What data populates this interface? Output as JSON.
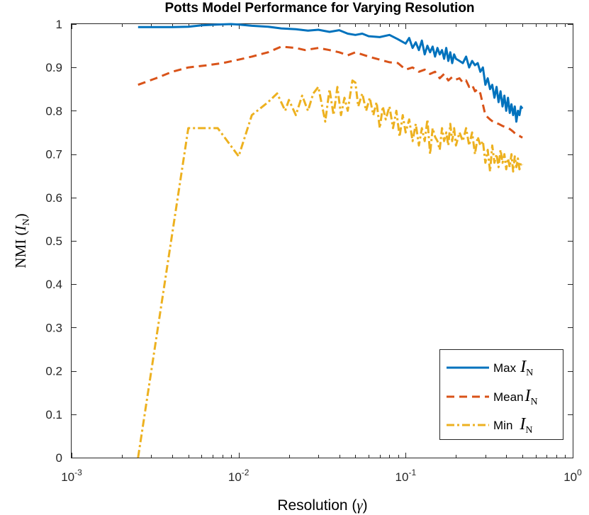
{
  "chart_data": {
    "type": "line",
    "title": "Potts Model Performance for Varying Resolution",
    "xlabel": {
      "prefix": "Resolution (",
      "symbol": "γ",
      "suffix": ")"
    },
    "ylabel": {
      "prefix": "NMI (",
      "symbol": "I",
      "subscript": "N",
      "suffix": ")"
    },
    "xscale": "log",
    "xlim": [
      0.001,
      1
    ],
    "ylim": [
      0,
      1
    ],
    "xticks": [
      0.001,
      0.01,
      0.1,
      1
    ],
    "xtick_labels": [
      {
        "base": "10",
        "exp": "-3"
      },
      {
        "base": "10",
        "exp": "-2"
      },
      {
        "base": "10",
        "exp": "-1"
      },
      {
        "base": "10",
        "exp": "0"
      }
    ],
    "yticks": [
      0,
      0.1,
      0.2,
      0.3,
      0.4,
      0.5,
      0.6,
      0.7,
      0.8,
      0.9,
      1
    ],
    "ytick_labels": [
      "0",
      "0.1",
      "0.2",
      "0.3",
      "0.4",
      "0.5",
      "0.6",
      "0.7",
      "0.8",
      "0.9",
      "1"
    ],
    "grid": false,
    "legend_position": "bottom-right",
    "series": [
      {
        "name": "Max",
        "legend_text": "Max",
        "color": "#0072BD",
        "style": "solid",
        "x": [
          0.0025,
          0.0032,
          0.004,
          0.005,
          0.006,
          0.0075,
          0.009,
          0.01,
          0.012,
          0.015,
          0.018,
          0.022,
          0.026,
          0.03,
          0.035,
          0.04,
          0.045,
          0.05,
          0.055,
          0.06,
          0.07,
          0.08,
          0.09,
          0.1,
          0.105,
          0.11,
          0.115,
          0.12,
          0.125,
          0.13,
          0.135,
          0.14,
          0.145,
          0.15,
          0.155,
          0.16,
          0.165,
          0.17,
          0.175,
          0.18,
          0.185,
          0.19,
          0.195,
          0.2,
          0.21,
          0.22,
          0.23,
          0.24,
          0.25,
          0.26,
          0.27,
          0.28,
          0.29,
          0.3,
          0.31,
          0.32,
          0.33,
          0.34,
          0.35,
          0.36,
          0.37,
          0.38,
          0.39,
          0.4,
          0.41,
          0.42,
          0.43,
          0.44,
          0.45,
          0.46,
          0.47,
          0.48,
          0.49,
          0.5
        ],
        "y": [
          0.993,
          0.993,
          0.993,
          0.994,
          0.997,
          0.999,
          1.0,
          0.999,
          0.996,
          0.994,
          0.99,
          0.988,
          0.985,
          0.987,
          0.982,
          0.986,
          0.978,
          0.975,
          0.978,
          0.972,
          0.97,
          0.975,
          0.965,
          0.955,
          0.968,
          0.945,
          0.958,
          0.94,
          0.962,
          0.93,
          0.95,
          0.935,
          0.948,
          0.925,
          0.945,
          0.93,
          0.94,
          0.92,
          0.945,
          0.915,
          0.935,
          0.91,
          0.93,
          0.92,
          0.915,
          0.91,
          0.925,
          0.9,
          0.915,
          0.905,
          0.91,
          0.89,
          0.9,
          0.86,
          0.875,
          0.85,
          0.86,
          0.83,
          0.855,
          0.82,
          0.845,
          0.81,
          0.835,
          0.8,
          0.83,
          0.795,
          0.815,
          0.79,
          0.81,
          0.775,
          0.8,
          0.79,
          0.81,
          0.805
        ]
      },
      {
        "name": "Mean",
        "legend_text": "Mean",
        "color": "#D95319",
        "style": "dashed",
        "x": [
          0.0025,
          0.0032,
          0.004,
          0.005,
          0.0065,
          0.008,
          0.01,
          0.012,
          0.015,
          0.018,
          0.022,
          0.025,
          0.03,
          0.035,
          0.04,
          0.045,
          0.05,
          0.06,
          0.07,
          0.08,
          0.09,
          0.1,
          0.11,
          0.12,
          0.13,
          0.14,
          0.15,
          0.16,
          0.17,
          0.18,
          0.19,
          0.2,
          0.21,
          0.22,
          0.23,
          0.24,
          0.25,
          0.26,
          0.27,
          0.28,
          0.3,
          0.32,
          0.34,
          0.36,
          0.38,
          0.4,
          0.42,
          0.44,
          0.46,
          0.48,
          0.5
        ],
        "y": [
          0.86,
          0.875,
          0.89,
          0.9,
          0.905,
          0.91,
          0.918,
          0.925,
          0.935,
          0.948,
          0.945,
          0.94,
          0.945,
          0.94,
          0.935,
          0.928,
          0.935,
          0.925,
          0.918,
          0.912,
          0.91,
          0.895,
          0.9,
          0.89,
          0.895,
          0.885,
          0.89,
          0.875,
          0.885,
          0.87,
          0.878,
          0.872,
          0.875,
          0.865,
          0.87,
          0.855,
          0.86,
          0.845,
          0.85,
          0.84,
          0.79,
          0.78,
          0.772,
          0.77,
          0.765,
          0.762,
          0.758,
          0.752,
          0.745,
          0.742,
          0.738
        ]
      },
      {
        "name": "Min",
        "legend_text": "Min",
        "color": "#EDB120",
        "style": "dashdot",
        "x": [
          0.0025,
          0.005,
          0.006,
          0.0075,
          0.01,
          0.012,
          0.015,
          0.017,
          0.019,
          0.02,
          0.022,
          0.024,
          0.026,
          0.028,
          0.03,
          0.033,
          0.035,
          0.037,
          0.039,
          0.041,
          0.043,
          0.045,
          0.048,
          0.05,
          0.052,
          0.055,
          0.058,
          0.061,
          0.064,
          0.067,
          0.07,
          0.073,
          0.076,
          0.08,
          0.084,
          0.088,
          0.092,
          0.096,
          0.1,
          0.105,
          0.11,
          0.115,
          0.12,
          0.125,
          0.13,
          0.135,
          0.14,
          0.145,
          0.15,
          0.155,
          0.16,
          0.165,
          0.17,
          0.175,
          0.18,
          0.185,
          0.19,
          0.195,
          0.2,
          0.21,
          0.22,
          0.23,
          0.24,
          0.25,
          0.26,
          0.27,
          0.28,
          0.29,
          0.3,
          0.31,
          0.32,
          0.33,
          0.34,
          0.35,
          0.36,
          0.37,
          0.38,
          0.39,
          0.4,
          0.41,
          0.42,
          0.43,
          0.44,
          0.45,
          0.46,
          0.47,
          0.48,
          0.49,
          0.5
        ],
        "y": [
          0.0,
          0.76,
          0.76,
          0.76,
          0.695,
          0.79,
          0.82,
          0.84,
          0.8,
          0.825,
          0.79,
          0.835,
          0.8,
          0.84,
          0.855,
          0.775,
          0.85,
          0.79,
          0.855,
          0.79,
          0.83,
          0.8,
          0.87,
          0.865,
          0.81,
          0.84,
          0.8,
          0.83,
          0.79,
          0.82,
          0.76,
          0.81,
          0.78,
          0.81,
          0.76,
          0.8,
          0.74,
          0.79,
          0.75,
          0.78,
          0.73,
          0.77,
          0.72,
          0.76,
          0.73,
          0.78,
          0.7,
          0.76,
          0.74,
          0.73,
          0.71,
          0.76,
          0.73,
          0.75,
          0.72,
          0.77,
          0.73,
          0.76,
          0.72,
          0.75,
          0.73,
          0.76,
          0.72,
          0.75,
          0.7,
          0.74,
          0.72,
          0.73,
          0.68,
          0.71,
          0.66,
          0.72,
          0.68,
          0.7,
          0.67,
          0.71,
          0.68,
          0.7,
          0.665,
          0.69,
          0.67,
          0.7,
          0.66,
          0.695,
          0.67,
          0.69,
          0.665,
          0.68,
          0.675
        ]
      }
    ],
    "legend_symbol": {
      "letter": "I",
      "subscript": "N"
    }
  }
}
